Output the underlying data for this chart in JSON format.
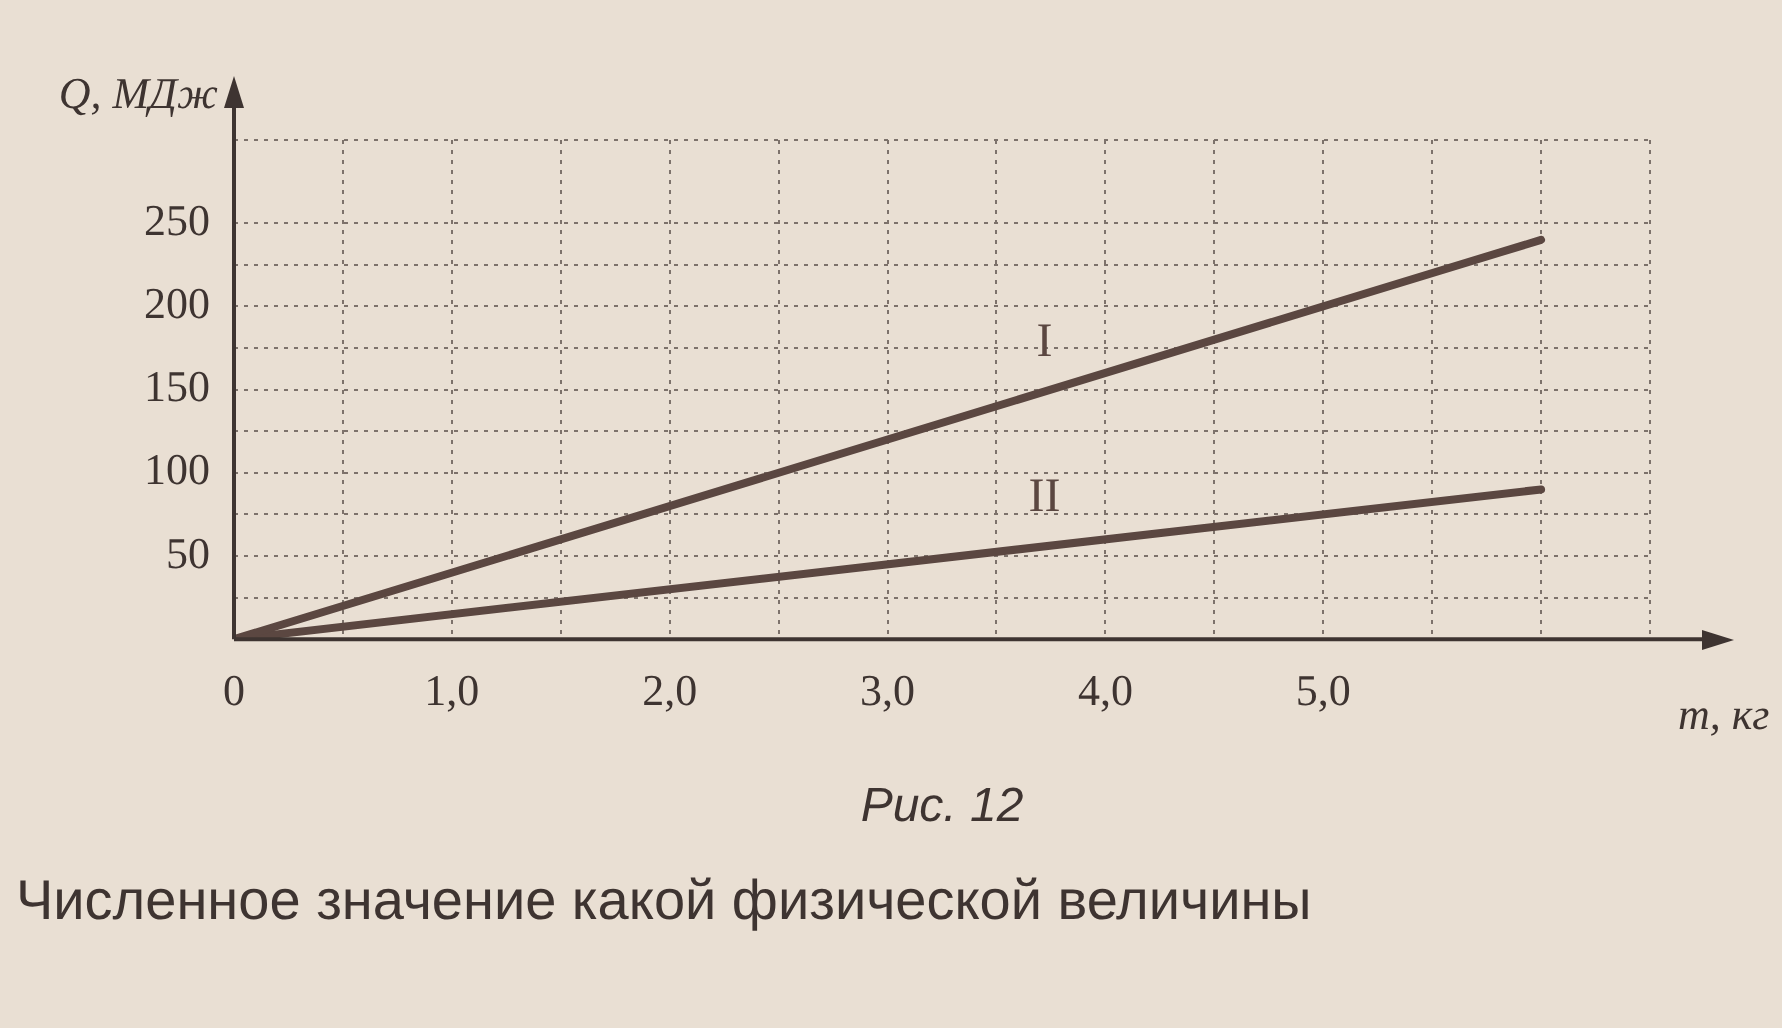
{
  "chart_data": {
    "type": "line",
    "xlabel": "m, кг",
    "ylabel": "Q, МДж",
    "x": [
      0,
      6
    ],
    "series": [
      {
        "name": "I",
        "color": "#5b4741",
        "values": [
          0,
          240
        ]
      },
      {
        "name": "II",
        "color": "#5b4741",
        "values": [
          0,
          90
        ]
      }
    ],
    "xlim": [
      0,
      6.5
    ],
    "xticks": [
      {
        "value": 0,
        "label": "0"
      },
      {
        "value": 0.5,
        "label": null
      },
      {
        "value": 1,
        "label": "1,0"
      },
      {
        "value": 1.5,
        "label": null
      },
      {
        "value": 2,
        "label": "2,0"
      },
      {
        "value": 2.5,
        "label": null
      },
      {
        "value": 3,
        "label": "3,0"
      },
      {
        "value": 3.5,
        "label": null
      },
      {
        "value": 4,
        "label": "4,0"
      },
      {
        "value": 4.5,
        "label": null
      },
      {
        "value": 5,
        "label": "5,0"
      },
      {
        "value": 5.5,
        "label": null
      },
      {
        "value": 6,
        "label": null
      },
      {
        "value": 6.5,
        "label": null
      }
    ],
    "ylim": [
      0,
      300
    ],
    "yticks": [
      {
        "value": 0,
        "label": null
      },
      {
        "value": 25,
        "label": null
      },
      50,
      {
        "value": 75,
        "label": null
      },
      100,
      {
        "value": 125,
        "label": null
      },
      150,
      {
        "value": 175,
        "label": null
      },
      200,
      {
        "value": 225,
        "label": null
      },
      250,
      {
        "value": 300,
        "label": null
      }
    ],
    "grid": true,
    "marker": "none",
    "line_style": "solid",
    "legend": false,
    "annotations": [
      "Рис. 12",
      "Численное значение какой физической величины"
    ]
  }
}
